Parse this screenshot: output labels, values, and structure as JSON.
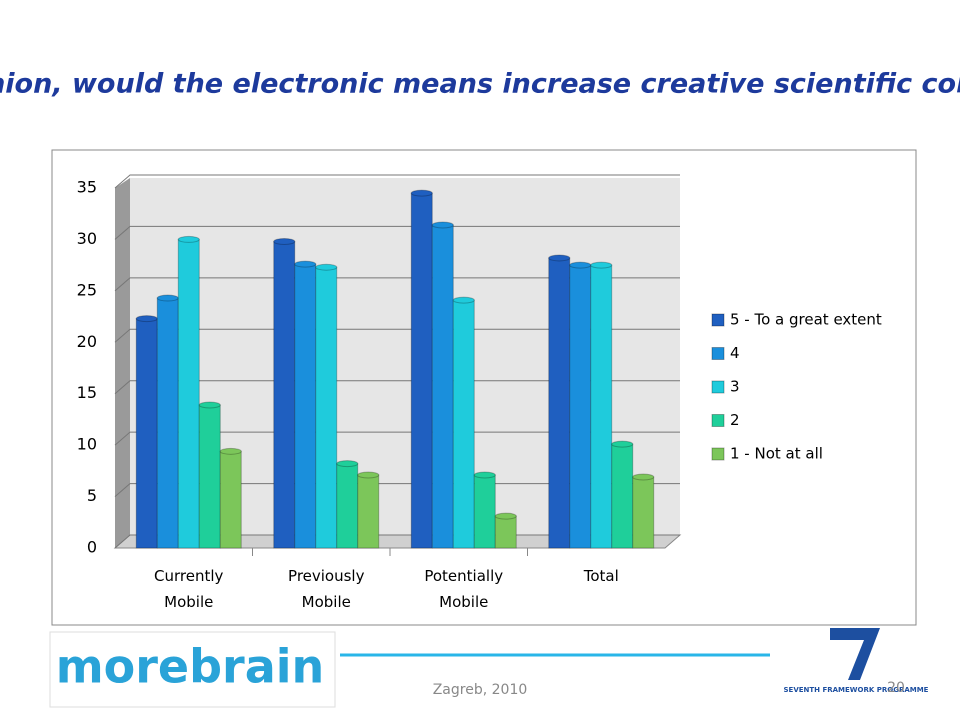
{
  "chart_data": {
    "type": "bar",
    "title": "In your opinion, would the electronic means increase creative scientific collaboration?",
    "categories": [
      "Currently Mobile",
      "Previously Mobile",
      "Potentially Mobile",
      "Total"
    ],
    "series": [
      {
        "name": "5 - To a great extent",
        "color": "#1f5fc0",
        "values": [
          22.3,
          29.8,
          34.5,
          28.2
        ]
      },
      {
        "name": "4",
        "color": "#1a8fdc",
        "values": [
          24.3,
          27.6,
          31.4,
          27.5
        ]
      },
      {
        "name": "3",
        "color": "#1fcbdc",
        "values": [
          30.0,
          27.3,
          24.1,
          27.5
        ]
      },
      {
        "name": "2",
        "color": "#1fcf9a",
        "values": [
          13.9,
          8.2,
          7.1,
          10.1
        ]
      },
      {
        "name": "1 - Not at all",
        "color": "#7cc65a",
        "values": [
          9.4,
          7.1,
          3.1,
          6.9
        ]
      }
    ],
    "ylim": [
      0,
      35
    ],
    "yticks": [
      0,
      5,
      10,
      15,
      20,
      25,
      30,
      35
    ],
    "grid": true,
    "legend": "right"
  },
  "footer": {
    "logo": "morebrain",
    "place": "Zagreb, 2010",
    "page": "20",
    "programme": "SEVENTH FRAMEWORK PROGRAMME"
  }
}
